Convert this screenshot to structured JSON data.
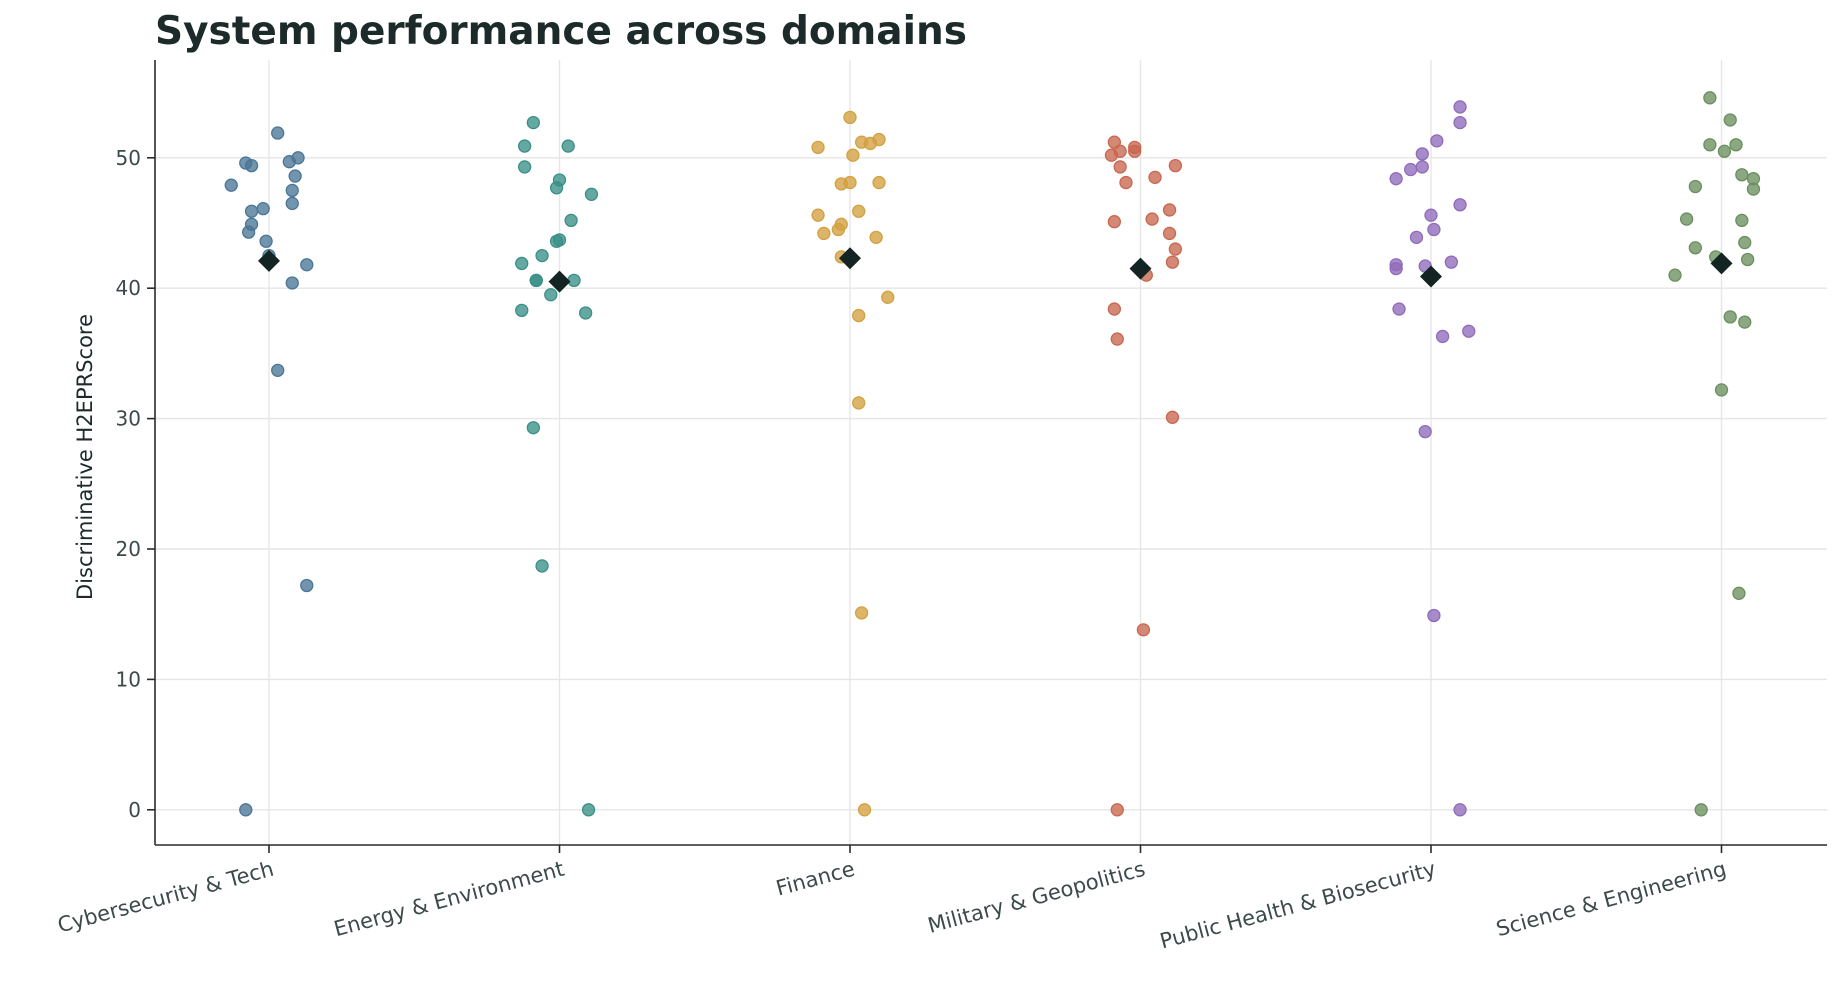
{
  "chart_data": {
    "type": "scatter",
    "title": "System performance across domains",
    "ylabel": "Discriminative H2EPRScore",
    "xlabel": "",
    "ylim": [
      -2.7,
      57.5
    ],
    "yticks": [
      0,
      10,
      20,
      30,
      40,
      50
    ],
    "grid": true,
    "colors": {
      "title": "#1c2b2a",
      "mean_marker": "#142423",
      "grid": "#e6e6e6",
      "axis": "#2b2b2b"
    },
    "categories": [
      "Cybersecurity & Tech",
      "Energy & Environment",
      "Finance",
      "Military & Geopolitics",
      "Public Health & Biosecurity",
      "Science & Engineering"
    ],
    "series": [
      {
        "category": "Cybersecurity & Tech",
        "color": "#4a7696",
        "mean": 42.1,
        "points": [
          {
            "jitter": 0.03,
            "y": 51.9
          },
          {
            "jitter": -0.08,
            "y": 49.6
          },
          {
            "jitter": -0.06,
            "y": 49.4
          },
          {
            "jitter": 0.07,
            "y": 49.7
          },
          {
            "jitter": 0.1,
            "y": 50.0
          },
          {
            "jitter": -0.13,
            "y": 47.9
          },
          {
            "jitter": 0.09,
            "y": 48.6
          },
          {
            "jitter": 0.08,
            "y": 47.5
          },
          {
            "jitter": 0.08,
            "y": 46.5
          },
          {
            "jitter": -0.02,
            "y": 46.1
          },
          {
            "jitter": -0.06,
            "y": 45.9
          },
          {
            "jitter": -0.06,
            "y": 44.9
          },
          {
            "jitter": -0.07,
            "y": 44.3
          },
          {
            "jitter": -0.01,
            "y": 43.6
          },
          {
            "jitter": 0.0,
            "y": 42.5
          },
          {
            "jitter": 0.13,
            "y": 41.8
          },
          {
            "jitter": 0.08,
            "y": 40.4
          },
          {
            "jitter": 0.03,
            "y": 33.7
          },
          {
            "jitter": 0.13,
            "y": 17.2
          },
          {
            "jitter": -0.08,
            "y": 0.0
          }
        ]
      },
      {
        "category": "Energy & Environment",
        "color": "#3a8f87",
        "mean": 40.5,
        "points": [
          {
            "jitter": -0.09,
            "y": 52.7
          },
          {
            "jitter": -0.12,
            "y": 50.9
          },
          {
            "jitter": 0.03,
            "y": 50.9
          },
          {
            "jitter": -0.12,
            "y": 49.3
          },
          {
            "jitter": 0.0,
            "y": 48.3
          },
          {
            "jitter": -0.01,
            "y": 47.7
          },
          {
            "jitter": 0.11,
            "y": 47.2
          },
          {
            "jitter": 0.04,
            "y": 45.2
          },
          {
            "jitter": 0.0,
            "y": 43.7
          },
          {
            "jitter": -0.01,
            "y": 43.6
          },
          {
            "jitter": -0.06,
            "y": 42.5
          },
          {
            "jitter": -0.13,
            "y": 41.9
          },
          {
            "jitter": -0.08,
            "y": 40.6
          },
          {
            "jitter": -0.08,
            "y": 40.6
          },
          {
            "jitter": 0.05,
            "y": 40.6
          },
          {
            "jitter": -0.03,
            "y": 39.5
          },
          {
            "jitter": -0.13,
            "y": 38.3
          },
          {
            "jitter": 0.09,
            "y": 38.1
          },
          {
            "jitter": -0.09,
            "y": 29.3
          },
          {
            "jitter": -0.06,
            "y": 18.7
          },
          {
            "jitter": 0.1,
            "y": 0.0
          }
        ]
      },
      {
        "category": "Finance",
        "color": "#d2a040",
        "mean": 42.3,
        "points": [
          {
            "jitter": 0.0,
            "y": 53.1
          },
          {
            "jitter": 0.1,
            "y": 51.4
          },
          {
            "jitter": 0.04,
            "y": 51.2
          },
          {
            "jitter": 0.07,
            "y": 51.1
          },
          {
            "jitter": -0.11,
            "y": 50.8
          },
          {
            "jitter": 0.01,
            "y": 50.2
          },
          {
            "jitter": 0.0,
            "y": 48.1
          },
          {
            "jitter": -0.03,
            "y": 48.0
          },
          {
            "jitter": 0.1,
            "y": 48.1
          },
          {
            "jitter": 0.03,
            "y": 45.9
          },
          {
            "jitter": -0.11,
            "y": 45.6
          },
          {
            "jitter": -0.03,
            "y": 44.9
          },
          {
            "jitter": -0.04,
            "y": 44.5
          },
          {
            "jitter": -0.09,
            "y": 44.2
          },
          {
            "jitter": 0.09,
            "y": 43.9
          },
          {
            "jitter": -0.03,
            "y": 42.4
          },
          {
            "jitter": 0.13,
            "y": 39.3
          },
          {
            "jitter": 0.03,
            "y": 37.9
          },
          {
            "jitter": 0.03,
            "y": 31.2
          },
          {
            "jitter": 0.04,
            "y": 15.1
          },
          {
            "jitter": 0.05,
            "y": 0.0
          }
        ]
      },
      {
        "category": "Military & Geopolitics",
        "color": "#c8674f",
        "mean": 41.5,
        "points": [
          {
            "jitter": -0.09,
            "y": 51.2
          },
          {
            "jitter": -0.02,
            "y": 50.8
          },
          {
            "jitter": -0.07,
            "y": 50.5
          },
          {
            "jitter": -0.02,
            "y": 50.5
          },
          {
            "jitter": -0.1,
            "y": 50.2
          },
          {
            "jitter": 0.12,
            "y": 49.4
          },
          {
            "jitter": -0.07,
            "y": 49.3
          },
          {
            "jitter": 0.05,
            "y": 48.5
          },
          {
            "jitter": -0.05,
            "y": 48.1
          },
          {
            "jitter": 0.1,
            "y": 46.0
          },
          {
            "jitter": 0.04,
            "y": 45.3
          },
          {
            "jitter": -0.09,
            "y": 45.1
          },
          {
            "jitter": 0.1,
            "y": 44.2
          },
          {
            "jitter": 0.12,
            "y": 43.0
          },
          {
            "jitter": 0.11,
            "y": 42.0
          },
          {
            "jitter": 0.02,
            "y": 41.0
          },
          {
            "jitter": -0.09,
            "y": 38.4
          },
          {
            "jitter": -0.08,
            "y": 36.1
          },
          {
            "jitter": 0.11,
            "y": 30.1
          },
          {
            "jitter": 0.01,
            "y": 13.8
          },
          {
            "jitter": -0.08,
            "y": 0.0
          }
        ]
      },
      {
        "category": "Public Health & Biosecurity",
        "color": "#8f6bbb",
        "mean": 40.9,
        "points": [
          {
            "jitter": 0.1,
            "y": 53.9
          },
          {
            "jitter": 0.1,
            "y": 52.7
          },
          {
            "jitter": 0.02,
            "y": 51.3
          },
          {
            "jitter": -0.03,
            "y": 50.3
          },
          {
            "jitter": -0.03,
            "y": 49.3
          },
          {
            "jitter": -0.07,
            "y": 49.1
          },
          {
            "jitter": -0.12,
            "y": 48.4
          },
          {
            "jitter": 0.1,
            "y": 46.4
          },
          {
            "jitter": 0.0,
            "y": 45.6
          },
          {
            "jitter": 0.01,
            "y": 44.5
          },
          {
            "jitter": -0.05,
            "y": 43.9
          },
          {
            "jitter": 0.07,
            "y": 42.0
          },
          {
            "jitter": -0.12,
            "y": 41.8
          },
          {
            "jitter": -0.02,
            "y": 41.7
          },
          {
            "jitter": -0.12,
            "y": 41.5
          },
          {
            "jitter": -0.11,
            "y": 38.4
          },
          {
            "jitter": 0.13,
            "y": 36.7
          },
          {
            "jitter": 0.04,
            "y": 36.3
          },
          {
            "jitter": -0.02,
            "y": 29.0
          },
          {
            "jitter": 0.01,
            "y": 14.9
          },
          {
            "jitter": 0.1,
            "y": 0.0
          }
        ]
      },
      {
        "category": "Science & Engineering",
        "color": "#6a8f5f",
        "mean": 41.9,
        "points": [
          {
            "jitter": -0.04,
            "y": 54.6
          },
          {
            "jitter": 0.03,
            "y": 52.9
          },
          {
            "jitter": -0.04,
            "y": 51.0
          },
          {
            "jitter": 0.05,
            "y": 51.0
          },
          {
            "jitter": 0.01,
            "y": 50.5
          },
          {
            "jitter": 0.07,
            "y": 48.7
          },
          {
            "jitter": 0.11,
            "y": 48.4
          },
          {
            "jitter": 0.11,
            "y": 47.6
          },
          {
            "jitter": -0.09,
            "y": 47.8
          },
          {
            "jitter": -0.12,
            "y": 45.3
          },
          {
            "jitter": 0.07,
            "y": 45.2
          },
          {
            "jitter": 0.08,
            "y": 43.5
          },
          {
            "jitter": -0.09,
            "y": 43.1
          },
          {
            "jitter": -0.02,
            "y": 42.4
          },
          {
            "jitter": 0.09,
            "y": 42.2
          },
          {
            "jitter": -0.16,
            "y": 41.0
          },
          {
            "jitter": 0.03,
            "y": 37.8
          },
          {
            "jitter": 0.08,
            "y": 37.4
          },
          {
            "jitter": 0.0,
            "y": 32.2
          },
          {
            "jitter": 0.06,
            "y": 16.6
          },
          {
            "jitter": -0.07,
            "y": 0.0
          }
        ]
      }
    ]
  }
}
